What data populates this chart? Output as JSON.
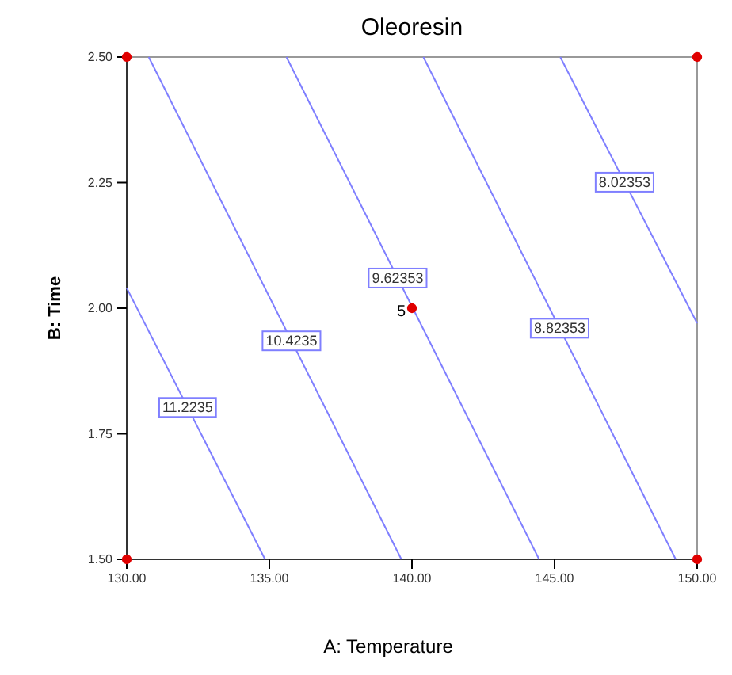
{
  "chart_data": {
    "type": "line",
    "title": "Oleoresin",
    "xlabel": "A: Temperature",
    "ylabel": "B: Time",
    "xlim": [
      130,
      150
    ],
    "xticks": [
      {
        "value": 130,
        "label": "130.00"
      },
      {
        "value": 135,
        "label": "135.00"
      },
      {
        "value": 140,
        "label": "140.00"
      },
      {
        "value": 145,
        "label": "145.00"
      },
      {
        "value": 150,
        "label": "150.00"
      }
    ],
    "ylim": [
      1.5,
      2.5
    ],
    "yticks": [
      {
        "value": 1.5,
        "label": "1.50"
      },
      {
        "value": 1.75,
        "label": "1.75"
      },
      {
        "value": 2.0,
        "label": "2.00"
      },
      {
        "value": 2.25,
        "label": "2.25"
      },
      {
        "value": 2.5,
        "label": "2.50"
      }
    ],
    "grid": false,
    "marker": "none",
    "series": [
      {
        "name": "11.2235",
        "color": "#7f7fff",
        "x": [
          130,
          134.85
        ],
        "values": [
          2.04,
          1.5
        ]
      },
      {
        "name": "10.4235",
        "color": "#7f7fff",
        "x": [
          130.77,
          139.63
        ],
        "values": [
          2.5,
          1.5
        ]
      },
      {
        "name": "9.62353",
        "color": "#7f7fff",
        "x": [
          135.6,
          144.46
        ],
        "values": [
          2.5,
          1.5
        ]
      },
      {
        "name": "8.82353",
        "color": "#7f7fff",
        "x": [
          140.4,
          149.25
        ],
        "values": [
          2.5,
          1.5
        ]
      },
      {
        "name": "8.02353",
        "color": "#7f7fff",
        "x": [
          145.2,
          150
        ],
        "values": [
          2.5,
          1.97
        ]
      },
      {
        "type": "scatter",
        "marker": "circle",
        "color": "#e00000",
        "x": [
          130,
          150,
          130,
          150,
          140
        ],
        "values": [
          2.5,
          2.5,
          1.5,
          1.5,
          2.0
        ]
      }
    ],
    "annotations": [
      {
        "text": "5",
        "x": 140,
        "y": 2.0
      }
    ]
  }
}
